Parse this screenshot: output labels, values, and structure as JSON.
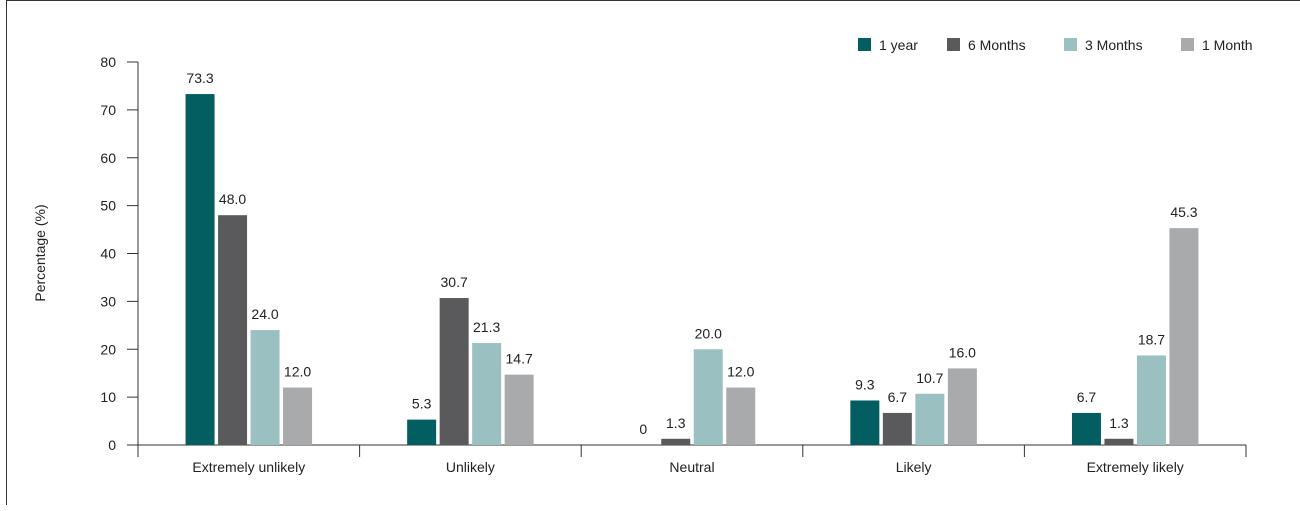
{
  "chart_data": {
    "type": "bar",
    "title": "",
    "xlabel": "",
    "ylabel": "Percentage (%)",
    "ylim": [
      0,
      80
    ],
    "yticks": [
      0,
      10,
      20,
      30,
      40,
      50,
      60,
      70,
      80
    ],
    "grid": false,
    "legend_position": "top-right",
    "categories": [
      "Extremely unlikely",
      "Unlikely",
      "Neutral",
      "Likely",
      "Extremely likely"
    ],
    "series": [
      {
        "name": "1 year",
        "color": "#035e62",
        "values": [
          73.3,
          5.3,
          0,
          9.3,
          6.7
        ],
        "labels": [
          "73.3",
          "5.3",
          "0",
          "9.3",
          "6.7"
        ]
      },
      {
        "name": "6 Months",
        "color": "#5a5a5c",
        "values": [
          48.0,
          30.7,
          1.3,
          6.7,
          1.3
        ],
        "labels": [
          "48.0",
          "30.7",
          "1.3",
          "6.7",
          "1.3"
        ]
      },
      {
        "name": "3 Months",
        "color": "#9bc0c2",
        "values": [
          24.0,
          21.3,
          20.0,
          10.7,
          18.7
        ],
        "labels": [
          "24.0",
          "21.3",
          "20.0",
          "10.7",
          "18.7"
        ]
      },
      {
        "name": "1 Month",
        "color": "#a9aaac",
        "values": [
          12.0,
          14.7,
          12.0,
          16.0,
          45.3
        ],
        "labels": [
          "12.0",
          "14.7",
          "12.0",
          "16.0",
          "45.3"
        ]
      }
    ]
  }
}
